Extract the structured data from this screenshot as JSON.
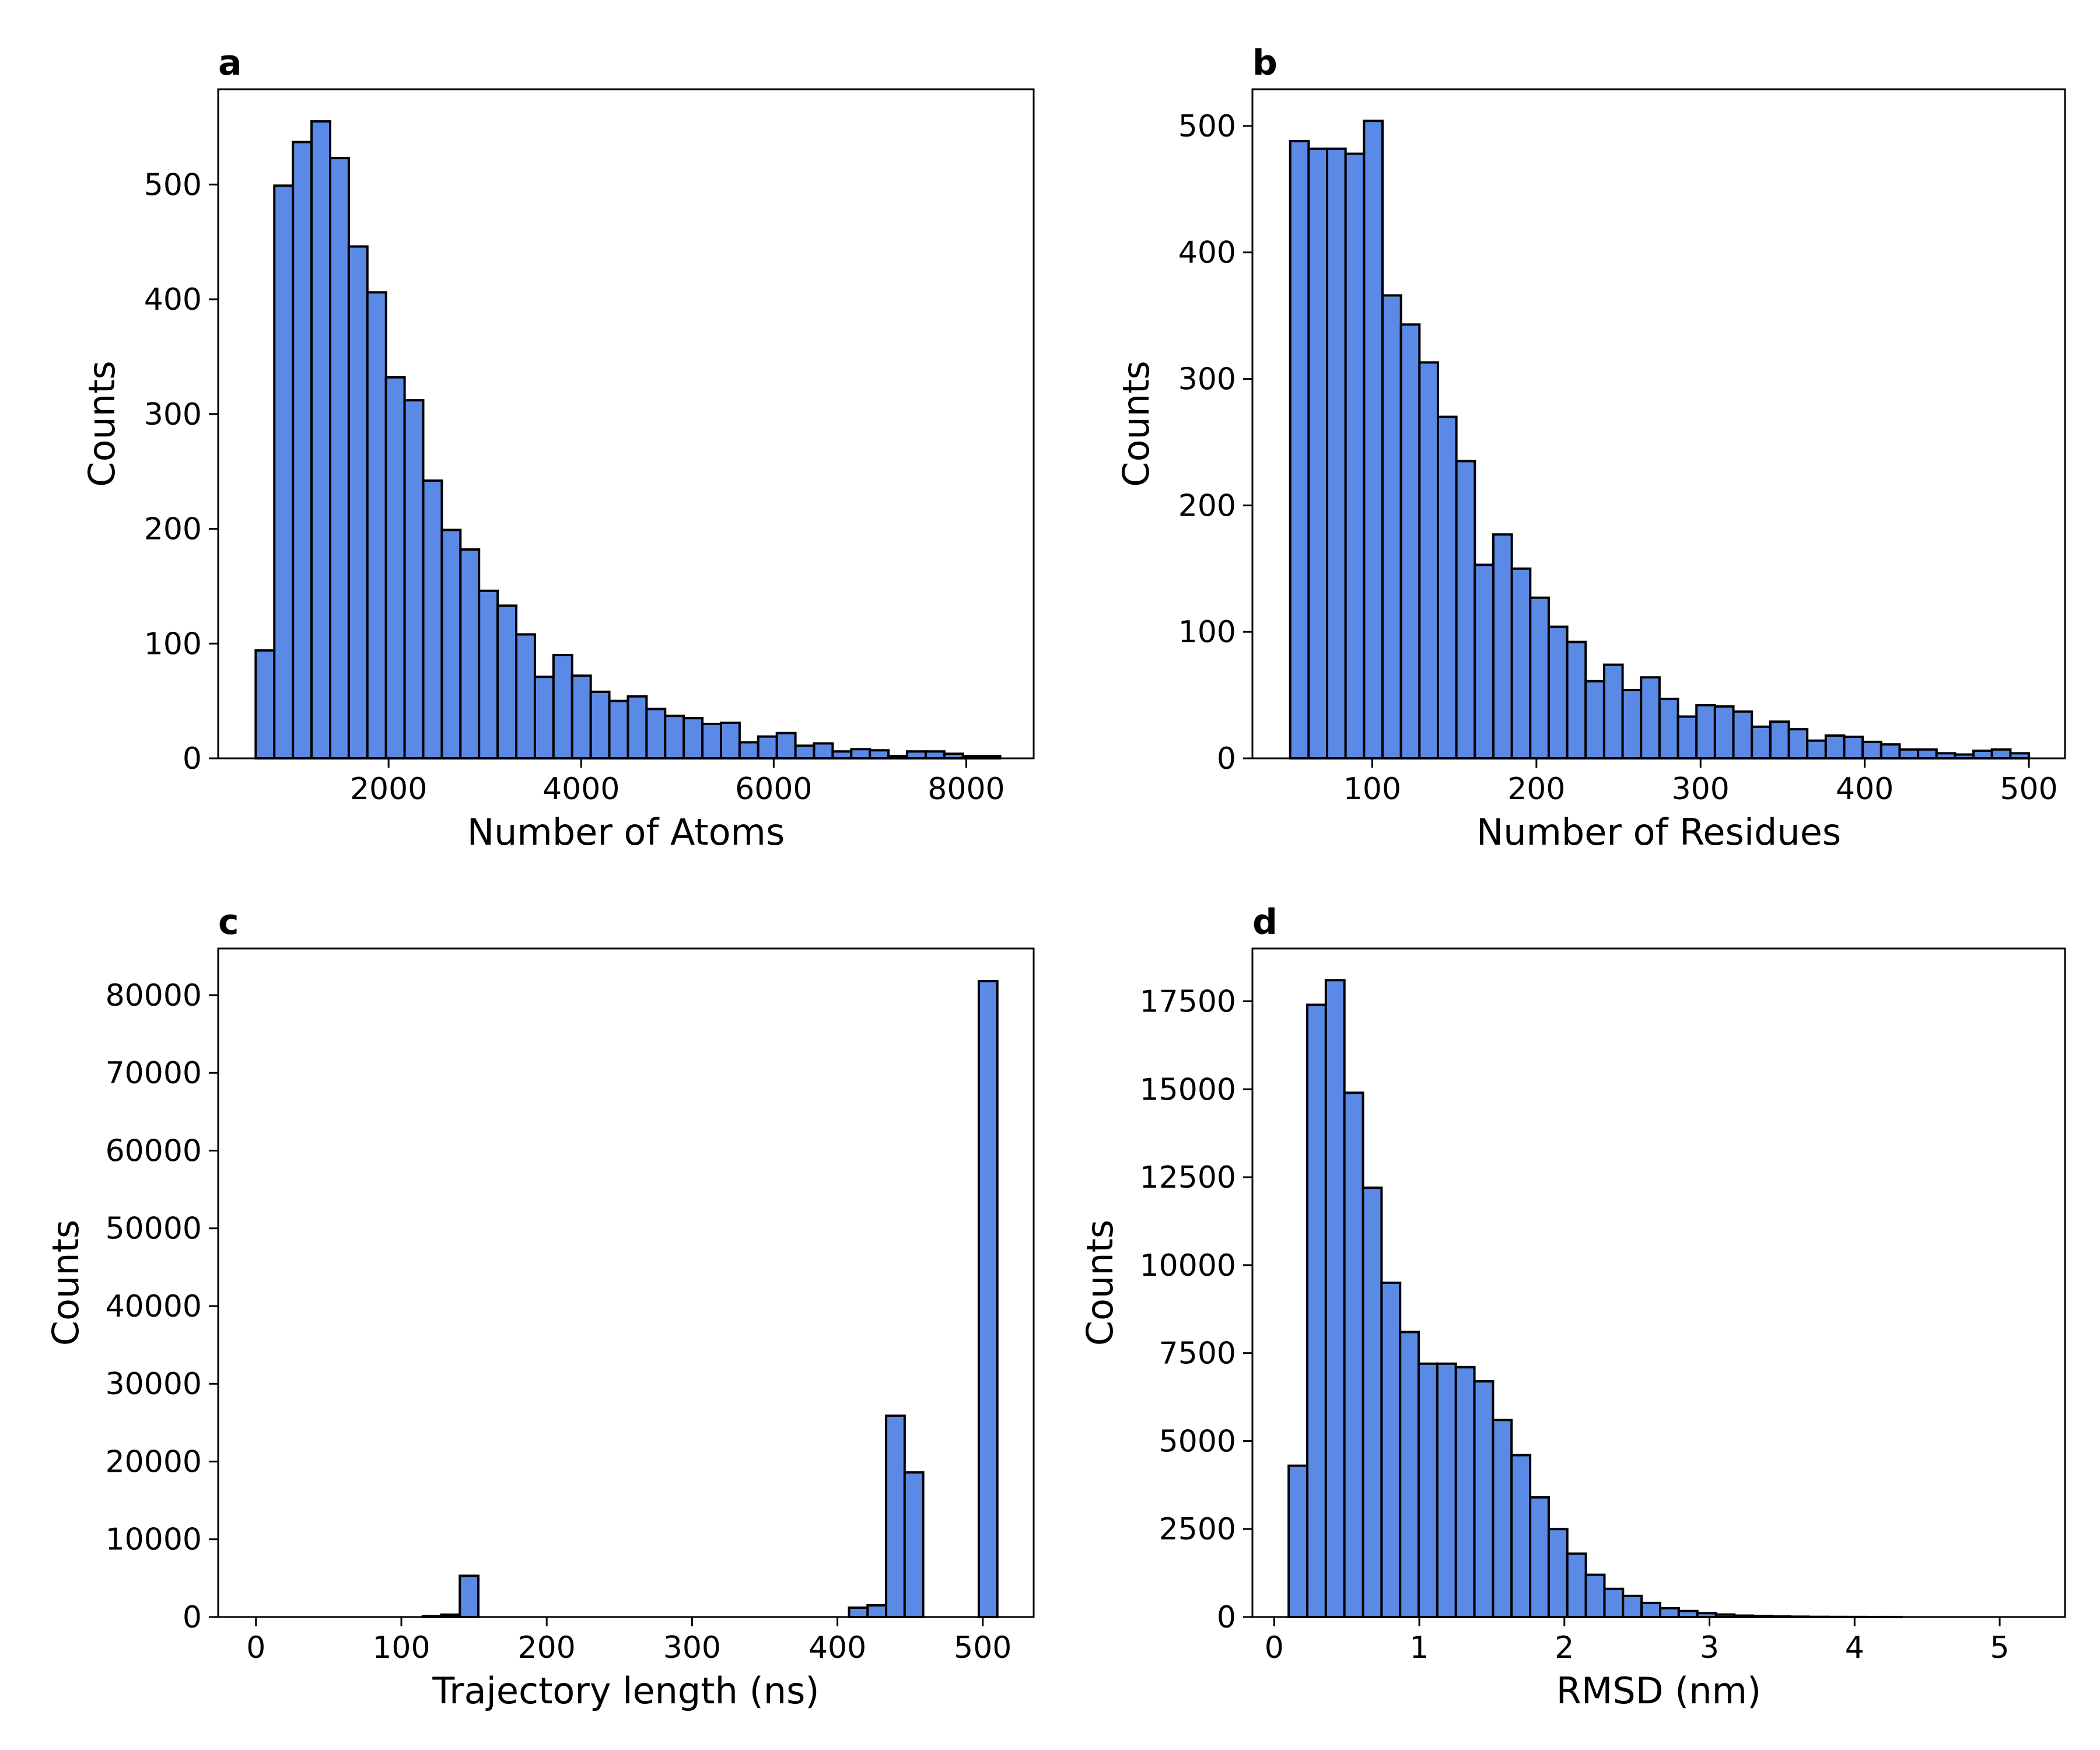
{
  "colors": {
    "bar_fill": "#5b8ae6",
    "bar_edge": "#000000",
    "background": "#ffffff"
  },
  "chart_data": [
    {
      "type": "bar",
      "panel": "a",
      "xlabel": "Number of Atoms",
      "ylabel": "Counts",
      "xlim": [
        230,
        8700
      ],
      "ylim": [
        0,
        583
      ],
      "xticks": [
        2000,
        4000,
        6000,
        8000
      ],
      "yticks": [
        0,
        100,
        200,
        300,
        400,
        500
      ],
      "bin_start": 620,
      "bin_width": 193.3,
      "values": [
        94,
        499,
        537,
        555,
        523,
        446,
        406,
        332,
        312,
        242,
        199,
        182,
        146,
        133,
        108,
        71,
        90,
        72,
        58,
        50,
        54,
        43,
        37,
        35,
        30,
        31,
        14,
        19,
        22,
        11,
        13,
        6,
        8,
        7,
        2,
        6,
        6,
        4,
        2,
        2
      ]
    },
    {
      "type": "bar",
      "panel": "b",
      "xlabel": "Number of Residues",
      "ylabel": "Counts",
      "xlim": [
        27,
        522
      ],
      "ylim": [
        0,
        529
      ],
      "xticks": [
        100,
        200,
        300,
        400,
        500
      ],
      "yticks": [
        0,
        100,
        200,
        300,
        400,
        500
      ],
      "bin_start": 50,
      "bin_width": 11.25,
      "values": [
        488,
        482,
        482,
        478,
        504,
        366,
        343,
        313,
        270,
        235,
        153,
        177,
        150,
        127,
        104,
        92,
        61,
        74,
        54,
        64,
        47,
        33,
        42,
        41,
        37,
        25,
        29,
        23,
        14,
        18,
        17,
        13,
        11,
        7,
        7,
        4,
        3,
        6,
        7,
        4
      ]
    },
    {
      "type": "bar",
      "panel": "c",
      "xlabel": "Trajectory length (ns)",
      "ylabel": "Counts",
      "xlim": [
        -26,
        535
      ],
      "ylim": [
        0,
        86000
      ],
      "xticks": [
        0,
        100,
        200,
        300,
        400,
        500
      ],
      "yticks": [
        0,
        10000,
        20000,
        30000,
        40000,
        50000,
        60000,
        70000,
        80000
      ],
      "bin_start": 0,
      "bin_width": 12.75,
      "values": [
        0,
        0,
        0,
        0,
        0,
        0,
        0,
        0,
        0,
        100,
        300,
        5300,
        0,
        0,
        0,
        0,
        0,
        0,
        0,
        0,
        0,
        0,
        0,
        0,
        0,
        0,
        0,
        0,
        0,
        0,
        0,
        0,
        1200,
        1500,
        25900,
        18600,
        0,
        0,
        0,
        81800
      ]
    },
    {
      "type": "bar",
      "panel": "d",
      "xlabel": "RMSD (nm)",
      "ylabel": "Counts",
      "xlim": [
        -0.15,
        5.45
      ],
      "ylim": [
        0,
        19000
      ],
      "xticks": [
        0,
        1,
        2,
        3,
        4,
        5
      ],
      "yticks": [
        0,
        2500,
        5000,
        7500,
        10000,
        12500,
        15000,
        17500
      ],
      "bin_start": 0.1,
      "bin_width": 0.128,
      "values": [
        4300,
        17400,
        18100,
        14900,
        12200,
        9500,
        8100,
        7200,
        7200,
        7100,
        6700,
        5600,
        4600,
        3400,
        2500,
        1800,
        1200,
        800,
        600,
        400,
        250,
        170,
        110,
        70,
        40,
        25,
        15,
        10,
        5,
        3,
        2,
        1,
        1,
        0,
        0,
        0,
        0,
        0,
        0,
        0
      ]
    }
  ]
}
